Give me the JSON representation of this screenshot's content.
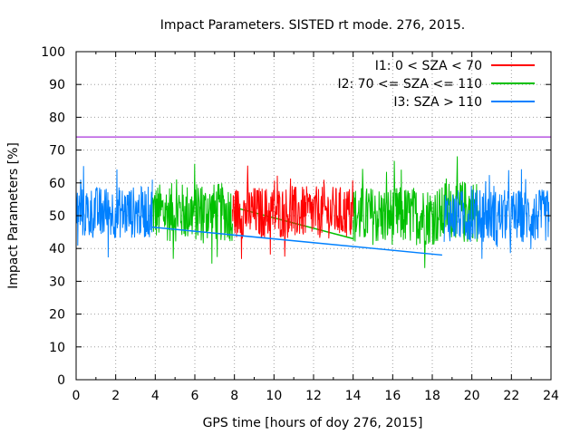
{
  "chart_data": {
    "type": "line",
    "title": "Impact Parameters. SISTED rt mode. 276, 2015.",
    "xlabel": "GPS time [hours of doy 276, 2015]",
    "ylabel": "Impact Parameters [%]",
    "xlim": [
      0,
      24
    ],
    "ylim": [
      0,
      100
    ],
    "x_ticks": [
      0,
      2,
      4,
      6,
      8,
      10,
      12,
      14,
      16,
      18,
      20,
      22,
      24
    ],
    "y_ticks": [
      0,
      10,
      20,
      30,
      40,
      50,
      60,
      70,
      80,
      90,
      100
    ],
    "grid": true,
    "legend_position": "top-right",
    "threshold": {
      "value": 74,
      "color": "#9400d3"
    },
    "series": [
      {
        "name": "I1: 0 < SZA < 70",
        "color": "#ff0000",
        "segments": [
          {
            "x_start": 7.9,
            "x_end": 14.0,
            "mean": 51,
            "spread": 8
          }
        ]
      },
      {
        "name": "I2: 70 <= SZA <= 110",
        "color": "#00c000",
        "segments": [
          {
            "x_start": 3.85,
            "x_end": 7.9,
            "mean": 51,
            "spread": 9
          },
          {
            "x_start": 14.0,
            "x_end": 18.6,
            "mean": 50,
            "spread": 9
          },
          {
            "x_start": 18.6,
            "x_end": 20.3,
            "mean": 52,
            "spread": 9
          }
        ],
        "connector": {
          "x": [
            8.0,
            14.0
          ],
          "y": [
            52.5,
            43.0
          ]
        }
      },
      {
        "name": "I3: SZA > 110",
        "color": "#0080ff",
        "segments": [
          {
            "x_start": 0.0,
            "x_end": 3.85,
            "mean": 51,
            "spread": 8
          },
          {
            "x_start": 18.6,
            "x_end": 23.9,
            "mean": 50,
            "spread": 8
          }
        ],
        "connector": {
          "x": [
            3.85,
            18.5
          ],
          "y": [
            46.5,
            38.0
          ]
        }
      }
    ]
  }
}
